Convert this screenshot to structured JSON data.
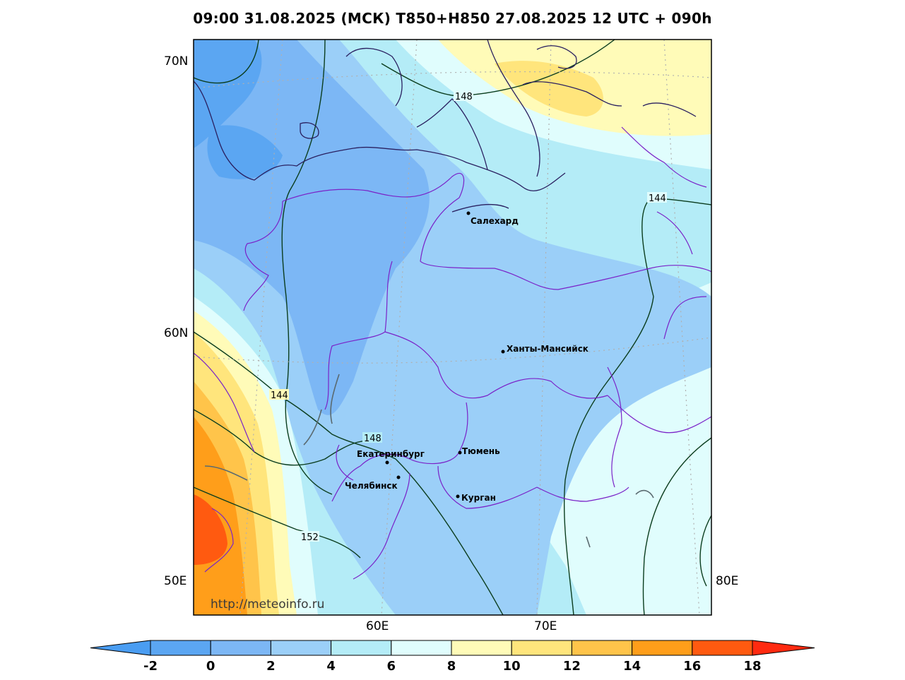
{
  "title": "09:00 31.08.2025 (МСК) T850+H850 27.08.2025 12 UTC + 090h",
  "watermark": "http://meteoinfo.ru",
  "axis_labels": {
    "lat_70": "70N",
    "lat_60": "60N",
    "lon_50": "50E",
    "lon_60": "60E",
    "lon_70": "70E",
    "lon_80": "80E"
  },
  "cities": [
    {
      "name": "Салехард"
    },
    {
      "name": "Ханты-Мансийск"
    },
    {
      "name": "Екатеринбург"
    },
    {
      "name": "Тюмень"
    },
    {
      "name": "Челябинск"
    },
    {
      "name": "Курган"
    }
  ],
  "contour_labels": [
    "148",
    "144",
    "144",
    "148",
    "152"
  ],
  "colorbar": {
    "tick_labels": [
      "-2",
      "0",
      "2",
      "4",
      "6",
      "8",
      "10",
      "12",
      "14",
      "16",
      "18"
    ],
    "colors": [
      "#4a9df2",
      "#5ba6f2",
      "#7cb7f5",
      "#9bcff8",
      "#b4ecf7",
      "#e0fdfd",
      "#fffbb8",
      "#ffe57c",
      "#ffc44a",
      "#ff9e1a",
      "#ff5a10",
      "#ff2a10"
    ]
  },
  "fill_colors": {
    "c_m2": "#5ba6f2",
    "c_0": "#7cb7f5",
    "c_2": "#9bcff8",
    "c_4": "#b4ecf7",
    "c_6": "#e0fdfd",
    "c_8": "#fffbb8",
    "c_10": "#ffe57c",
    "c_12": "#ffc44a",
    "c_14": "#ff9e1a",
    "c_16": "#ff5a10"
  }
}
